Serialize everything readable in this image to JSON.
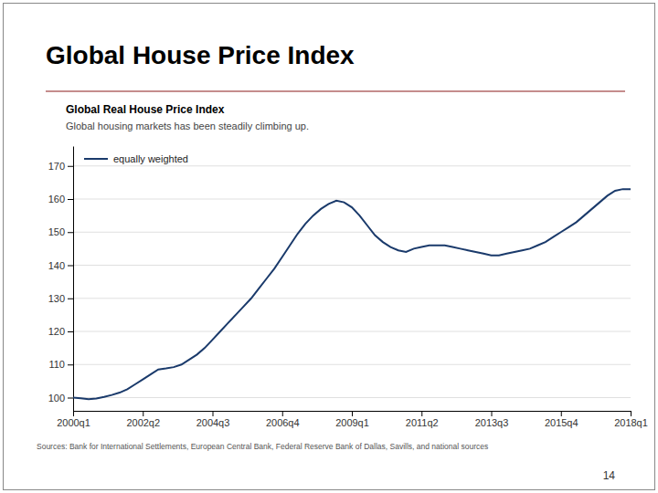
{
  "title": "Global House Price Index",
  "source": "Sources: Bank for International Settlements, European Central Bank, Federal Reserve Bank of Dallas, Savills, and national sources",
  "page_number": "14",
  "chart_data": {
    "type": "line",
    "title": "Global Real House Price Index",
    "subtitle": "Global housing markets has been steadily climbing up.",
    "x": [
      0,
      1,
      2,
      3,
      4,
      5,
      6,
      7,
      8,
      9,
      10,
      11,
      12,
      13,
      14,
      15,
      16,
      17,
      18,
      19,
      20,
      21,
      22,
      23,
      24,
      25,
      26,
      27,
      28,
      29,
      30,
      31,
      32,
      33,
      34,
      35,
      36,
      37,
      38,
      39,
      40,
      41,
      42,
      43,
      44,
      45,
      46,
      47,
      48,
      49,
      50,
      51,
      52,
      53,
      54,
      55,
      56,
      57,
      58,
      59,
      60,
      61,
      62,
      63,
      64,
      65,
      66,
      67,
      68,
      69,
      70,
      71,
      72
    ],
    "series": [
      {
        "name": "equally weighted",
        "color": "#1a3a6b",
        "values": [
          100,
          99.8,
          99.5,
          99.7,
          100.2,
          100.8,
          101.5,
          102.5,
          104,
          105.5,
          107,
          108.5,
          108.8,
          109.2,
          110,
          111.5,
          113,
          115,
          117.5,
          120,
          122.5,
          125,
          127.5,
          130,
          133,
          136,
          139,
          142.5,
          146,
          149.5,
          152.5,
          155,
          157,
          158.5,
          159.5,
          159,
          157.5,
          155,
          152,
          149,
          147,
          145.5,
          144.5,
          144,
          145,
          145.5,
          146,
          146,
          146,
          145.5,
          145,
          144.5,
          144,
          143.5,
          143,
          143,
          143.5,
          144,
          144.5,
          145,
          146,
          147,
          148.5,
          150,
          151.5,
          153,
          155,
          157,
          159,
          161,
          162.5,
          163,
          163
        ]
      }
    ],
    "xlim": [
      0,
      72
    ],
    "xticks": [
      {
        "value": 0,
        "label": "2000q1"
      },
      {
        "value": 9,
        "label": "2002q2"
      },
      {
        "value": 18,
        "label": "2004q3"
      },
      {
        "value": 27,
        "label": "2006q4"
      },
      {
        "value": 36,
        "label": "2009q1"
      },
      {
        "value": 45,
        "label": "2011q2"
      },
      {
        "value": 54,
        "label": "2013q3"
      },
      {
        "value": 63,
        "label": "2015q4"
      },
      {
        "value": 72,
        "label": "2018q1"
      }
    ],
    "ylim": [
      96,
      176
    ],
    "yticks": [
      100,
      110,
      120,
      130,
      140,
      150,
      160,
      170
    ],
    "grid": true,
    "legend": "upper left"
  }
}
